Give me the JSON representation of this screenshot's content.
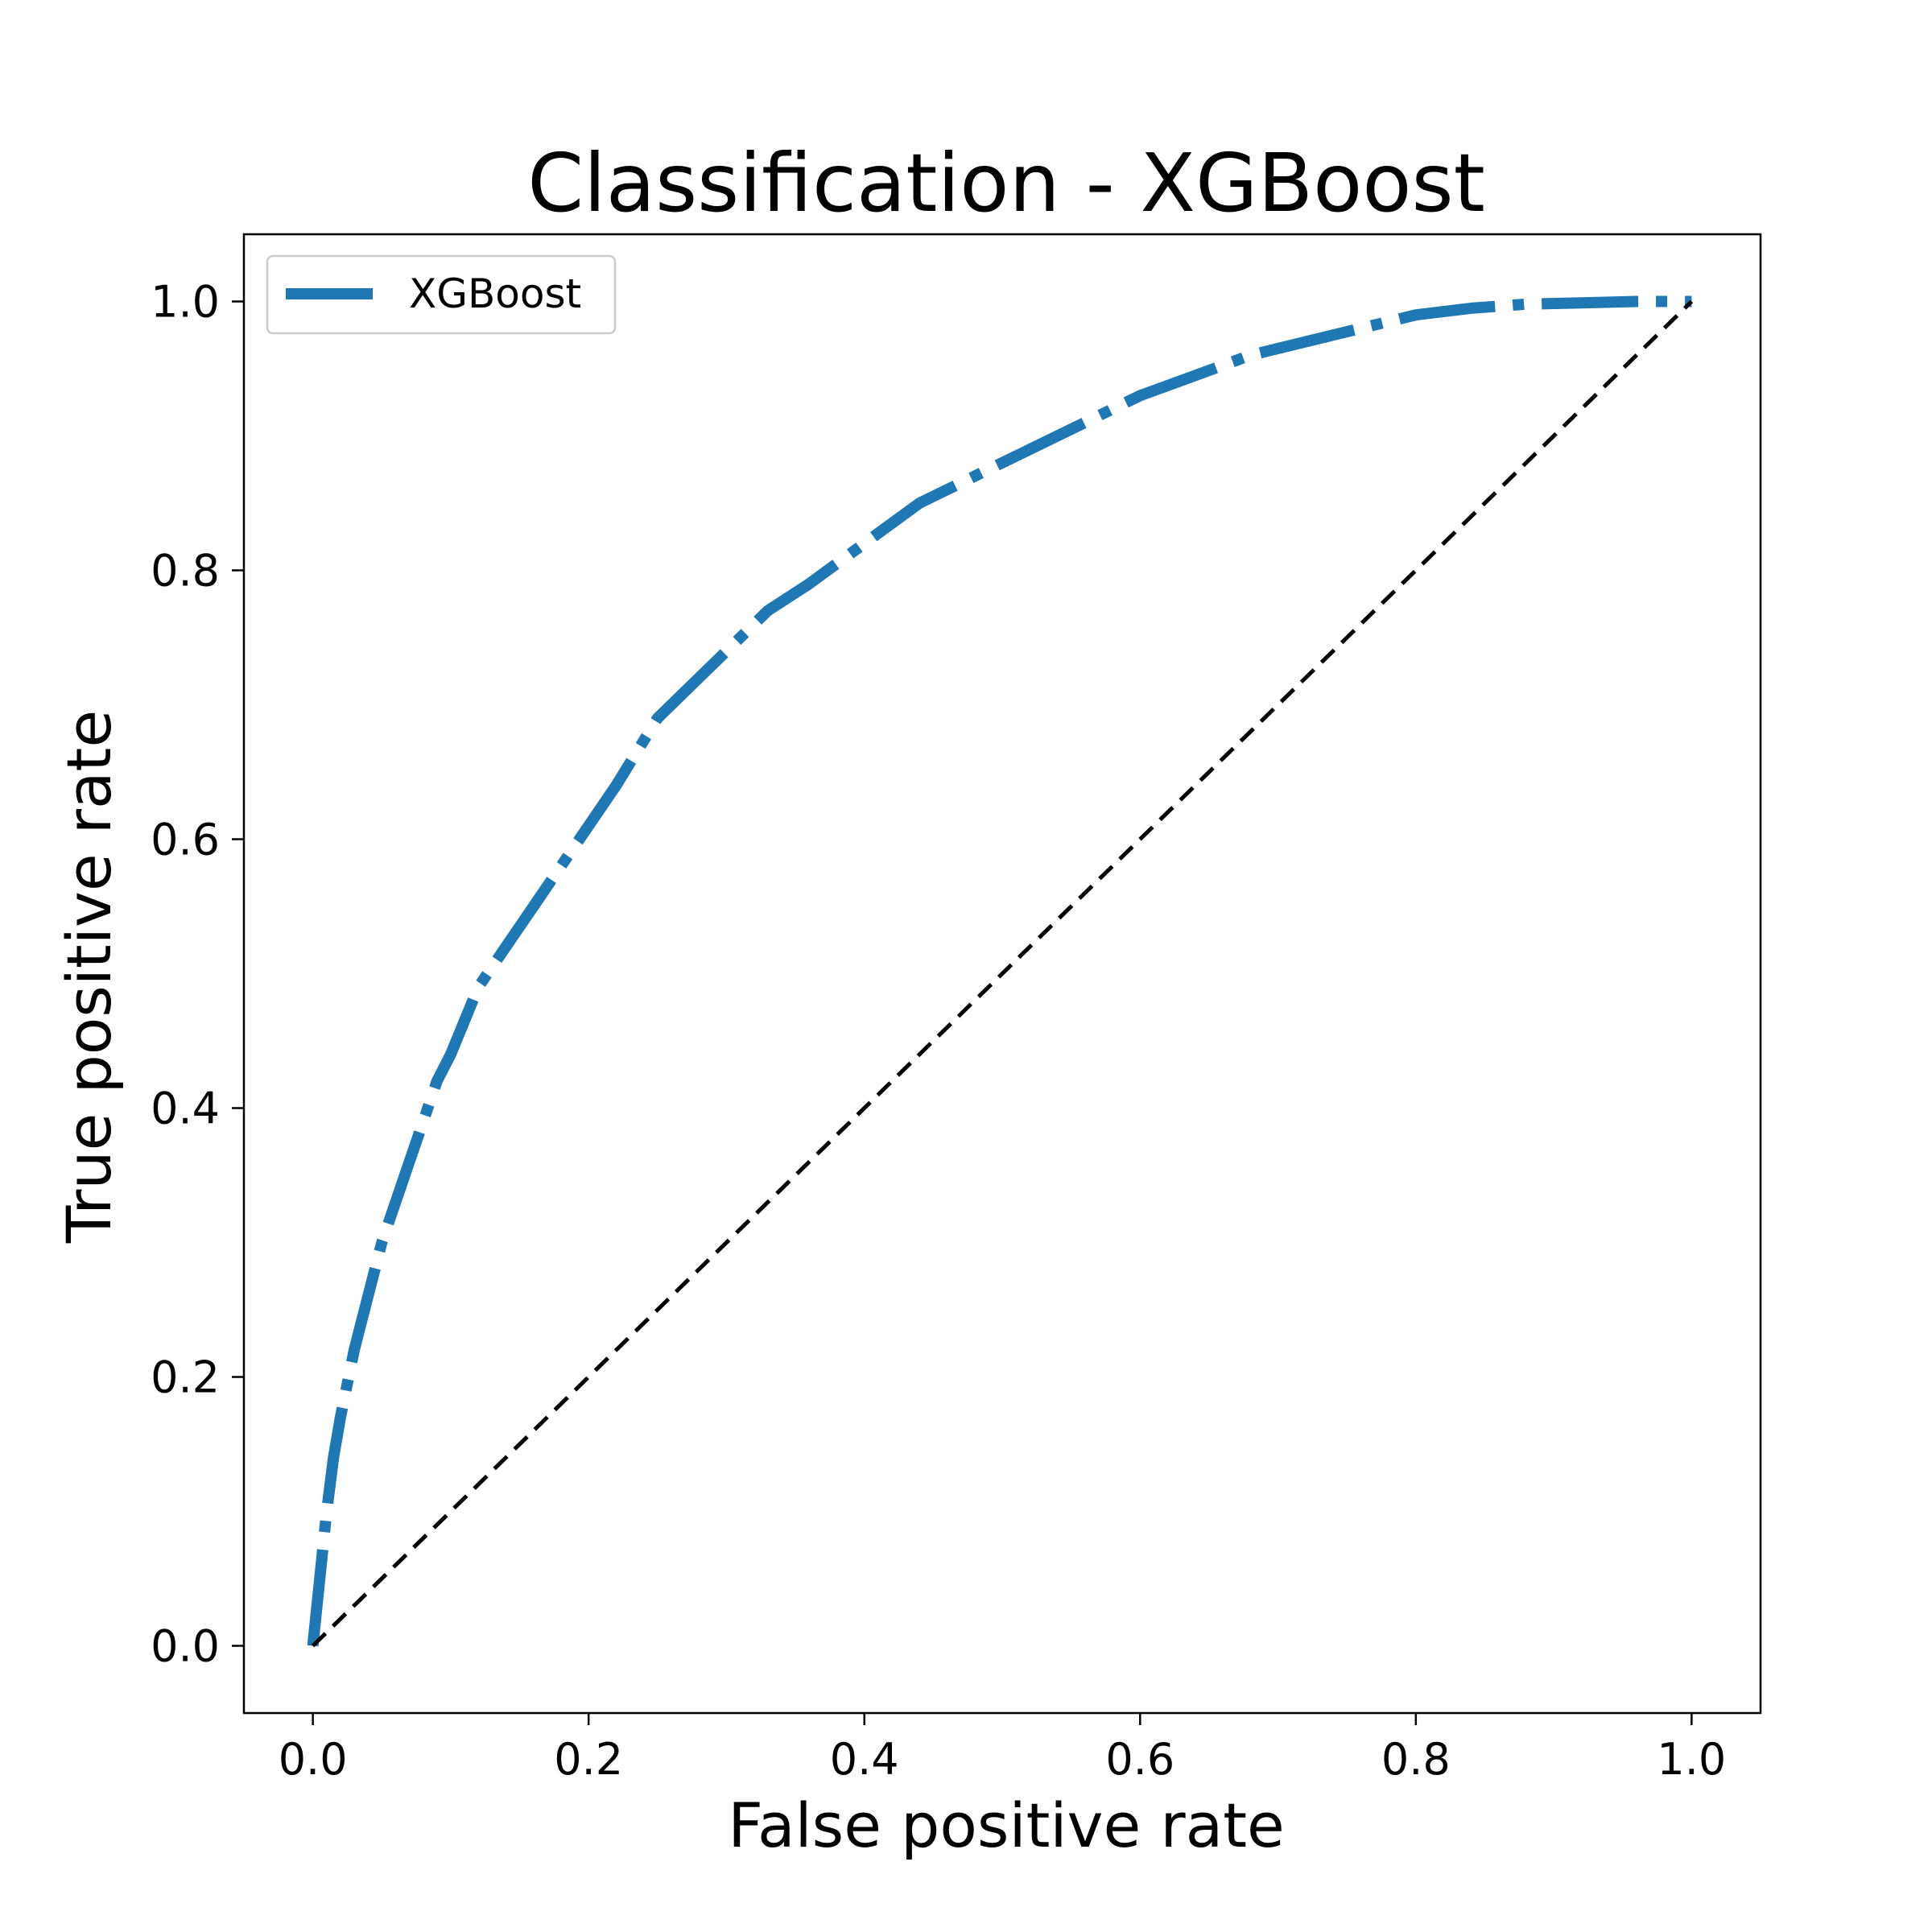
{
  "chart_data": {
    "type": "line",
    "title": "Classification - XGBoost",
    "xlabel": "False positive rate",
    "ylabel": "True positive rate",
    "xlim": [
      -0.05,
      1.05
    ],
    "ylim": [
      -0.05,
      1.05
    ],
    "xticks": [
      "0.0",
      "0.2",
      "0.4",
      "0.6",
      "0.8",
      "1.0"
    ],
    "yticks": [
      "0.0",
      "0.2",
      "0.4",
      "0.6",
      "0.8",
      "1.0"
    ],
    "grid": false,
    "legend_position": "top-left",
    "series": [
      {
        "name": "XGBoost",
        "color": "#1f77b4",
        "style": "dash-dot",
        "x": [
          0.0,
          0.005,
          0.01,
          0.015,
          0.02,
          0.03,
          0.04,
          0.05,
          0.06,
          0.07,
          0.08,
          0.09,
          0.1,
          0.12,
          0.14,
          0.16,
          0.18,
          0.2,
          0.22,
          0.25,
          0.28,
          0.3,
          0.33,
          0.36,
          0.4,
          0.44,
          0.48,
          0.52,
          0.56,
          0.6,
          0.64,
          0.68,
          0.72,
          0.76,
          0.8,
          0.84,
          0.88,
          0.92,
          0.96,
          1.0
        ],
        "y": [
          0.0,
          0.05,
          0.1,
          0.14,
          0.17,
          0.22,
          0.26,
          0.3,
          0.33,
          0.36,
          0.39,
          0.42,
          0.44,
          0.49,
          0.52,
          0.55,
          0.58,
          0.61,
          0.64,
          0.69,
          0.72,
          0.74,
          0.77,
          0.79,
          0.82,
          0.85,
          0.87,
          0.89,
          0.91,
          0.93,
          0.945,
          0.96,
          0.97,
          0.98,
          0.99,
          0.995,
          0.998,
          0.999,
          1.0,
          1.0
        ]
      },
      {
        "name": "",
        "color": "#000000",
        "style": "dashed",
        "x": [
          0.0,
          1.0
        ],
        "y": [
          0.0,
          1.0
        ]
      }
    ]
  },
  "colors": {
    "roc_line": "#1f77b4",
    "chance_line": "#000000",
    "axes": "#000000",
    "legend_border": "#cccccc"
  }
}
